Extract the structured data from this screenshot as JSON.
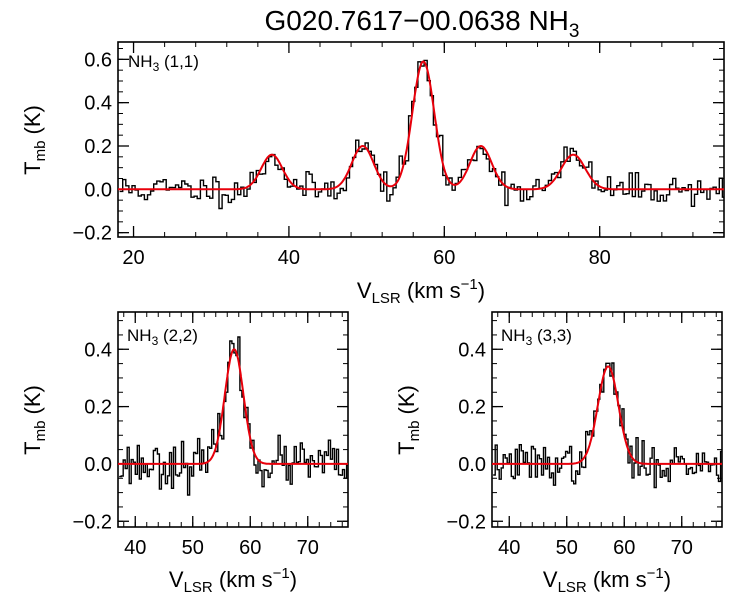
{
  "figure": {
    "title_main": "G020.7617−00.0638 NH",
    "title_sub": "3"
  },
  "colors": {
    "data": "#000000",
    "fit": "#e8000b",
    "frame": "#000000"
  },
  "chart_data": [
    {
      "type": "line",
      "panel": "NH3 (1,1)",
      "label_main": "NH",
      "label_sub": "3",
      "label_rest": " (1,1)",
      "xlabel_main": "V",
      "xlabel_sub": "LSR",
      "xlabel_rest": " (km s",
      "xlabel_sup": "−1",
      "xlabel_end": ")",
      "ylabel_main": "T",
      "ylabel_sub": "mb",
      "ylabel_rest": " (K)",
      "xlim": [
        18,
        96
      ],
      "ylim": [
        -0.22,
        0.68
      ],
      "xticks": [
        20,
        40,
        60,
        80
      ],
      "xtick_labels": [
        "20",
        "40",
        "60",
        "80"
      ],
      "yticks": [
        -0.2,
        0.0,
        0.2,
        0.4,
        0.6
      ],
      "ytick_labels": [
        "−0.2",
        "0.0",
        "0.2",
        "0.4",
        "0.6"
      ],
      "fit_components": [
        {
          "center": 37.8,
          "amplitude": 0.16,
          "fwhm": 3.2
        },
        {
          "center": 49.5,
          "amplitude": 0.2,
          "fwhm": 3.3
        },
        {
          "center": 57.3,
          "amplitude": 0.59,
          "fwhm": 3.3
        },
        {
          "center": 64.7,
          "amplitude": 0.2,
          "fwhm": 3.3
        },
        {
          "center": 76.6,
          "amplitude": 0.16,
          "fwhm": 3.6
        }
      ],
      "channel_start": 18.2,
      "channel_width": 0.4,
      "noise_rms": 0.035,
      "noise_seed": 11
    },
    {
      "type": "line",
      "panel": "NH3 (2,2)",
      "label_main": "NH",
      "label_sub": "3",
      "label_rest": " (2,2)",
      "xlabel_main": "V",
      "xlabel_sub": "LSR",
      "xlabel_rest": " (km s",
      "xlabel_sup": "−1",
      "xlabel_end": ")",
      "ylabel_main": "T",
      "ylabel_sub": "mb",
      "ylabel_rest": " (K)",
      "xlim": [
        37,
        77
      ],
      "ylim": [
        -0.22,
        0.53
      ],
      "xticks": [
        40,
        50,
        60,
        70
      ],
      "xtick_labels": [
        "40",
        "50",
        "60",
        "70"
      ],
      "yticks": [
        -0.2,
        0.0,
        0.2,
        0.4
      ],
      "ytick_labels": [
        "−0.2",
        "0.0",
        "0.2",
        "0.4"
      ],
      "fit_components": [
        {
          "center": 57.2,
          "amplitude": 0.4,
          "fwhm": 3.8
        }
      ],
      "channel_start": 37.2,
      "channel_width": 0.35,
      "noise_rms": 0.04,
      "noise_seed": 23
    },
    {
      "type": "line",
      "panel": "NH3 (3,3)",
      "label_main": "NH",
      "label_sub": "3",
      "label_rest": " (3,3)",
      "xlabel_main": "V",
      "xlabel_sub": "LSR",
      "xlabel_rest": " (km s",
      "xlabel_sup": "−1",
      "xlabel_end": ")",
      "ylabel_main": "T",
      "ylabel_sub": "mb",
      "ylabel_rest": " (K)",
      "xlim": [
        37,
        77
      ],
      "ylim": [
        -0.22,
        0.53
      ],
      "xticks": [
        40,
        50,
        60,
        70
      ],
      "xtick_labels": [
        "40",
        "50",
        "60",
        "70"
      ],
      "yticks": [
        -0.2,
        0.0,
        0.2,
        0.4
      ],
      "ytick_labels": [
        "−0.2",
        "0.0",
        "0.2",
        "0.4"
      ],
      "fit_components": [
        {
          "center": 57.2,
          "amplitude": 0.34,
          "fwhm": 4.2
        }
      ],
      "channel_start": 37.2,
      "channel_width": 0.35,
      "noise_rms": 0.035,
      "noise_seed": 37
    }
  ]
}
